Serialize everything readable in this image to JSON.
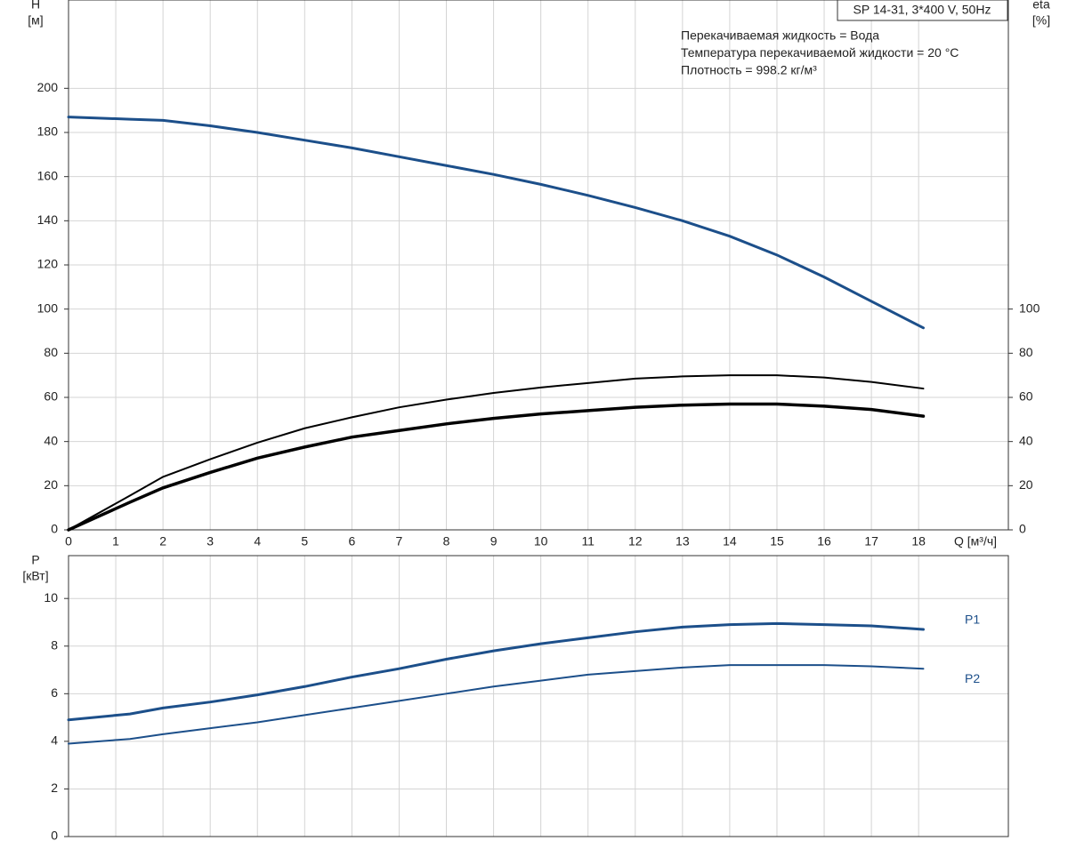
{
  "chart_data": [
    {
      "type": "line",
      "x_label": "Q [м³/ч]",
      "y_label": "H",
      "y_unit": "[м]",
      "y2_label": "eta",
      "y2_unit": "[%]",
      "legend_box": "SP 14-31, 3*400 V, 50Hz",
      "notes": [
        "Перекачиваемая жидкость = Вода",
        "Температура перекачиваемой жидкости = 20 °C",
        "Плотность = 998.2 кг/м³"
      ],
      "x": [
        0,
        1.3,
        2,
        3,
        4,
        5,
        6,
        7,
        8,
        9,
        10,
        11,
        12,
        13,
        14,
        15,
        16,
        17,
        18.1
      ],
      "xlim": [
        0,
        19.9
      ],
      "xticks": [
        0,
        1,
        2,
        3,
        4,
        5,
        6,
        7,
        8,
        9,
        10,
        11,
        12,
        13,
        14,
        15,
        16,
        17,
        18
      ],
      "ylim": [
        0,
        240
      ],
      "yticks": [
        0,
        20,
        40,
        60,
        80,
        100,
        120,
        140,
        160,
        180,
        200
      ],
      "y2lim": [
        0,
        240
      ],
      "y2ticks": [
        0,
        20,
        40,
        60,
        80,
        100
      ],
      "grid": true,
      "series": [
        {
          "color": "#1c4f8a",
          "line_width": 3,
          "values": [
            187,
            186,
            185.5,
            183,
            180,
            176.5,
            173,
            169,
            165,
            161,
            156.5,
            151.5,
            146,
            140,
            133,
            124.5,
            114.5,
            103.5,
            91.5
          ]
        },
        {
          "color": "#000000",
          "line_width": 2,
          "axis": "y2",
          "values": [
            0,
            15.5,
            24,
            32,
            39.5,
            46,
            51,
            55.5,
            59,
            62,
            64.5,
            66.5,
            68.5,
            69.5,
            70,
            70,
            69,
            67,
            64
          ]
        },
        {
          "color": "#000000",
          "line_width": 3.5,
          "axis": "y2",
          "values": [
            0,
            12.5,
            19,
            26,
            32.5,
            37.5,
            42,
            45,
            48,
            50.5,
            52.5,
            54,
            55.5,
            56.5,
            57,
            57,
            56,
            54.5,
            51.5
          ]
        }
      ]
    },
    {
      "type": "line",
      "y_label": "P",
      "y_unit": "[кВт]",
      "x": [
        0,
        1.3,
        2,
        3,
        4,
        5,
        6,
        7,
        8,
        9,
        10,
        11,
        12,
        13,
        14,
        15,
        16,
        17,
        18.1
      ],
      "xlim": [
        0,
        19.9
      ],
      "xticks": [
        0,
        1,
        2,
        3,
        4,
        5,
        6,
        7,
        8,
        9,
        10,
        11,
        12,
        13,
        14,
        15,
        16,
        17,
        18
      ],
      "ylim": [
        0,
        11.8
      ],
      "yticks": [
        0,
        2,
        4,
        6,
        8,
        10
      ],
      "grid": true,
      "series": [
        {
          "name": "P1",
          "color": "#1c4f8a",
          "line_width": 3,
          "values": [
            4.9,
            5.15,
            5.4,
            5.65,
            5.95,
            6.3,
            6.7,
            7.05,
            7.45,
            7.8,
            8.1,
            8.35,
            8.6,
            8.8,
            8.9,
            8.95,
            8.9,
            8.85,
            8.7
          ]
        },
        {
          "name": "P2",
          "color": "#1c4f8a",
          "line_width": 2,
          "values": [
            3.9,
            4.1,
            4.3,
            4.55,
            4.8,
            5.1,
            5.4,
            5.7,
            6.0,
            6.3,
            6.55,
            6.8,
            6.95,
            7.1,
            7.2,
            7.2,
            7.2,
            7.15,
            7.05
          ]
        }
      ]
    }
  ]
}
